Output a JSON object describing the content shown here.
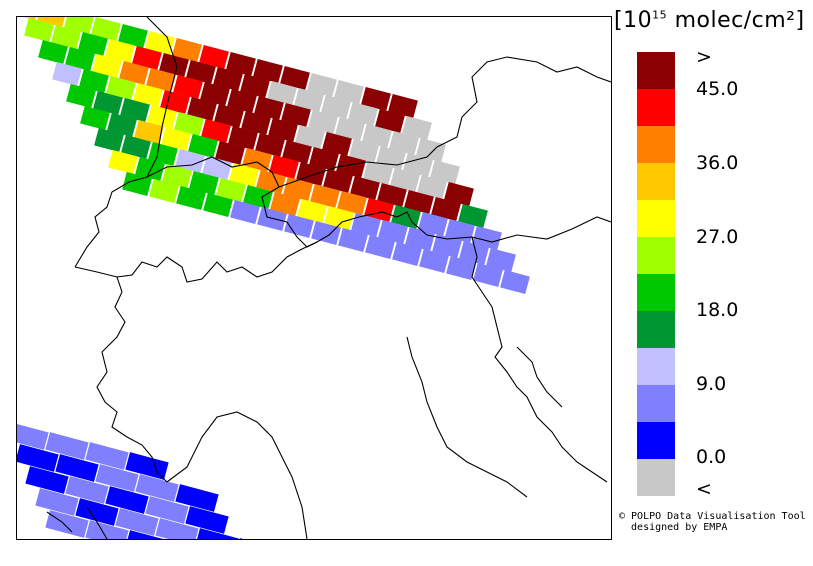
{
  "legend": {
    "unit_prefix": "[10",
    "unit_exponent": "15",
    "unit_suffix": " molec/cm²]",
    "bins": [
      {
        "color": "#8b0000"
      },
      {
        "color": "#ff0000"
      },
      {
        "color": "#ff8000"
      },
      {
        "color": "#ffc800"
      },
      {
        "color": "#ffff00"
      },
      {
        "color": "#a0ff00"
      },
      {
        "color": "#00c800"
      },
      {
        "color": "#009632"
      },
      {
        "color": "#c0c0ff"
      },
      {
        "color": "#8080ff"
      },
      {
        "color": "#0000ff"
      },
      {
        "color": "#c8c8c8"
      }
    ],
    "tick_labels": [
      ">",
      "45.0",
      "36.0",
      "27.0",
      "18.0",
      "9.0",
      "0.0",
      "<"
    ]
  },
  "credit": {
    "line1": "© POLPO Data Visualisation Tool",
    "line2": "  designed by EMPA"
  },
  "map": {
    "region": "Alps / Northern Italy",
    "swath_colors_ne": [
      "#009632",
      "#ffc800",
      "#a0ff00",
      "#00c800",
      "#ffff00",
      "#ff8000",
      "#ff0000",
      "#8b0000",
      "#c8c8c8",
      "#c0c0ff",
      "#8080ff"
    ],
    "swath_colors_sw": [
      "#8080ff",
      "#0000ff"
    ]
  }
}
